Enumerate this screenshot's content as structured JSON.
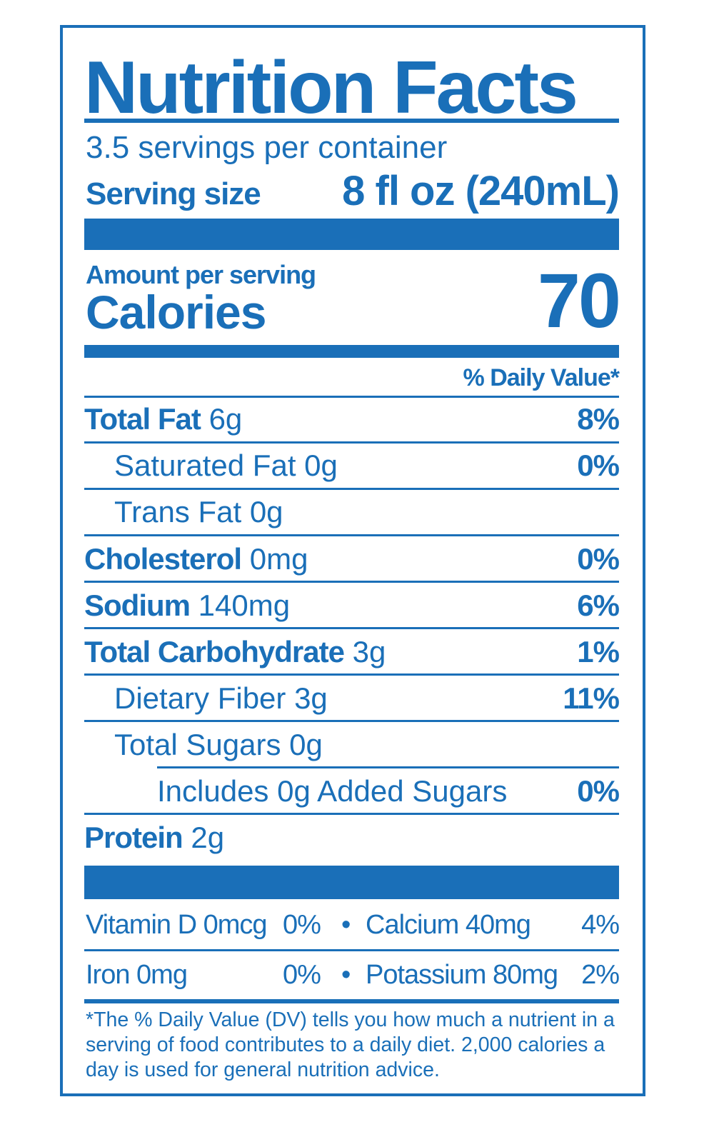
{
  "title": "Nutrition Facts",
  "servings_per_container": "3.5 servings per container",
  "serving_size": {
    "label": "Serving size",
    "value": "8 fl oz (240mL)"
  },
  "amount_per_serving": "Amount per serving",
  "calories": {
    "label": "Calories",
    "value": "70"
  },
  "daily_value_header": "% Daily Value*",
  "nutrients": [
    {
      "name": "Total Fat",
      "amount": "6g",
      "dv": "8%"
    },
    {
      "name": "Saturated Fat",
      "amount": "0g",
      "dv": "0%"
    },
    {
      "name": "Trans Fat",
      "amount": "0g",
      "dv": ""
    },
    {
      "name": "Cholesterol",
      "amount": "0mg",
      "dv": "0%"
    },
    {
      "name": "Sodium",
      "amount": "140mg",
      "dv": "6%"
    },
    {
      "name": "Total Carbohydrate",
      "amount": "3g",
      "dv": "1%"
    },
    {
      "name": "Dietary Fiber",
      "amount": "3g",
      "dv": "11%"
    },
    {
      "name": "Total Sugars",
      "amount": "0g",
      "dv": ""
    },
    {
      "name": "Includes 0g Added Sugars",
      "amount": "",
      "dv": "0%"
    },
    {
      "name": "Protein",
      "amount": "2g",
      "dv": ""
    }
  ],
  "vitamins": [
    {
      "name": "Vitamin D",
      "amount": "0mcg",
      "dv": "0%"
    },
    {
      "name": "Calcium",
      "amount": "40mg",
      "dv": "4%"
    },
    {
      "name": "Iron",
      "amount": "0mg",
      "dv": "0%"
    },
    {
      "name": "Potassium",
      "amount": "80mg",
      "dv": "2%"
    }
  ],
  "bullet": "•",
  "footnote": "*The % Daily Value (DV) tells you how much a nutrient in a serving of food contributes to a daily diet. 2,000 calories a day is used for general nutrition advice.",
  "colors": {
    "ink": "#1a6fb8",
    "background": "#ffffff"
  }
}
